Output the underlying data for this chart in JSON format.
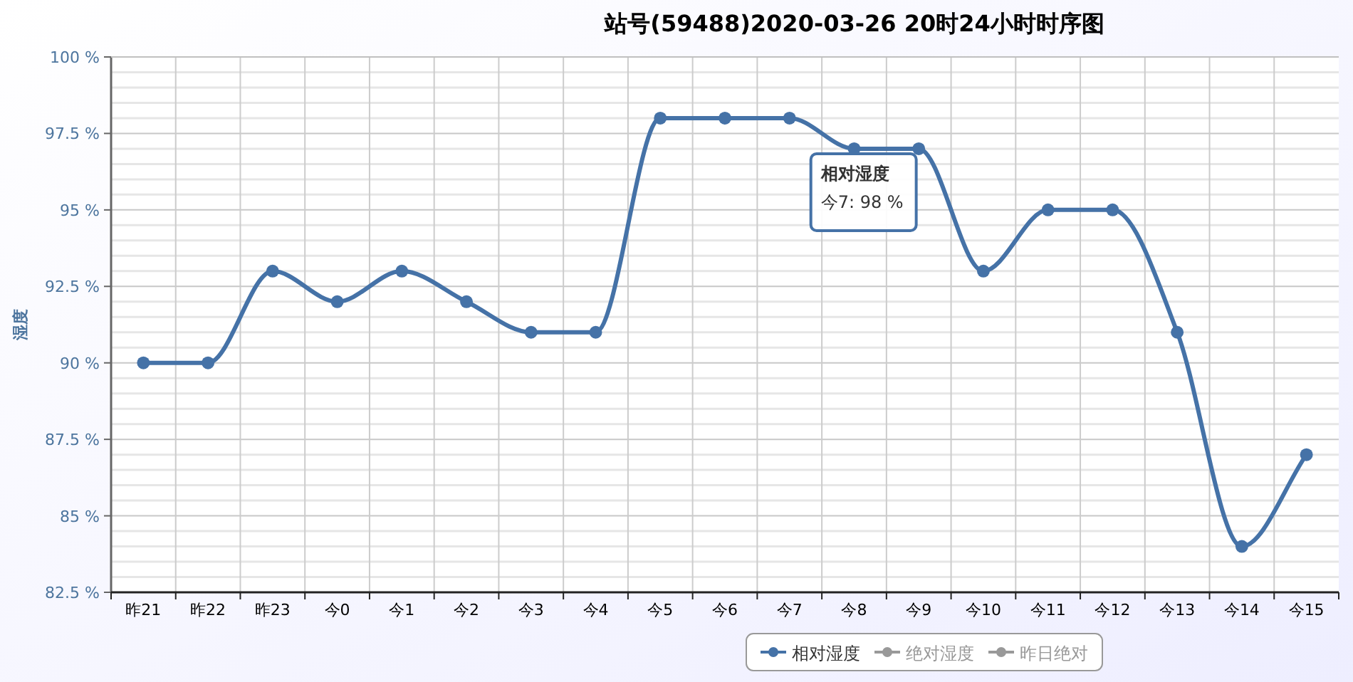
{
  "chart_data": {
    "type": "line",
    "title": "站号(59488)2020-03-26 20时24小时时序图",
    "ylabel": "湿度",
    "categories": [
      "昨21",
      "昨22",
      "昨23",
      "今0",
      "今1",
      "今2",
      "今3",
      "今4",
      "今5",
      "今6",
      "今7",
      "今8",
      "今9",
      "今10",
      "今11",
      "今12",
      "今13",
      "今14",
      "今15"
    ],
    "series": [
      {
        "name": "相对湿度",
        "color": "#4572a7",
        "values": [
          90,
          90,
          93,
          92,
          93,
          92,
          91,
          91,
          98,
          98,
          98,
          97,
          97,
          93,
          95,
          95,
          91,
          84,
          87
        ]
      },
      {
        "name": "绝对湿度",
        "color": "#999999",
        "values": [
          null,
          null,
          null,
          null,
          null,
          null,
          null,
          null,
          null,
          null,
          null,
          null,
          null,
          null,
          null,
          null,
          null,
          null,
          null
        ]
      },
      {
        "name": "昨日绝对",
        "color": "#999999",
        "values": [
          null,
          null,
          null,
          null,
          null,
          null,
          null,
          null,
          null,
          null,
          null,
          null,
          null,
          null,
          null,
          null,
          null,
          null,
          null
        ]
      }
    ],
    "ylim": [
      82.5,
      100
    ],
    "yticks": [
      {
        "value": 82.5,
        "label": "82.5 %"
      },
      {
        "value": 85,
        "label": "85 %"
      },
      {
        "value": 87.5,
        "label": "87.5 %"
      },
      {
        "value": 90,
        "label": "90 %"
      },
      {
        "value": 92.5,
        "label": "92.5 %"
      },
      {
        "value": 95,
        "label": "95 %"
      },
      {
        "value": 97.5,
        "label": "97.5 %"
      },
      {
        "value": 100,
        "label": "100 %"
      }
    ],
    "grid": true,
    "legend": "bottom",
    "marker": "circle",
    "line_style": "solid",
    "annotations": [
      "相对湿度",
      "今7: 98 %"
    ]
  }
}
